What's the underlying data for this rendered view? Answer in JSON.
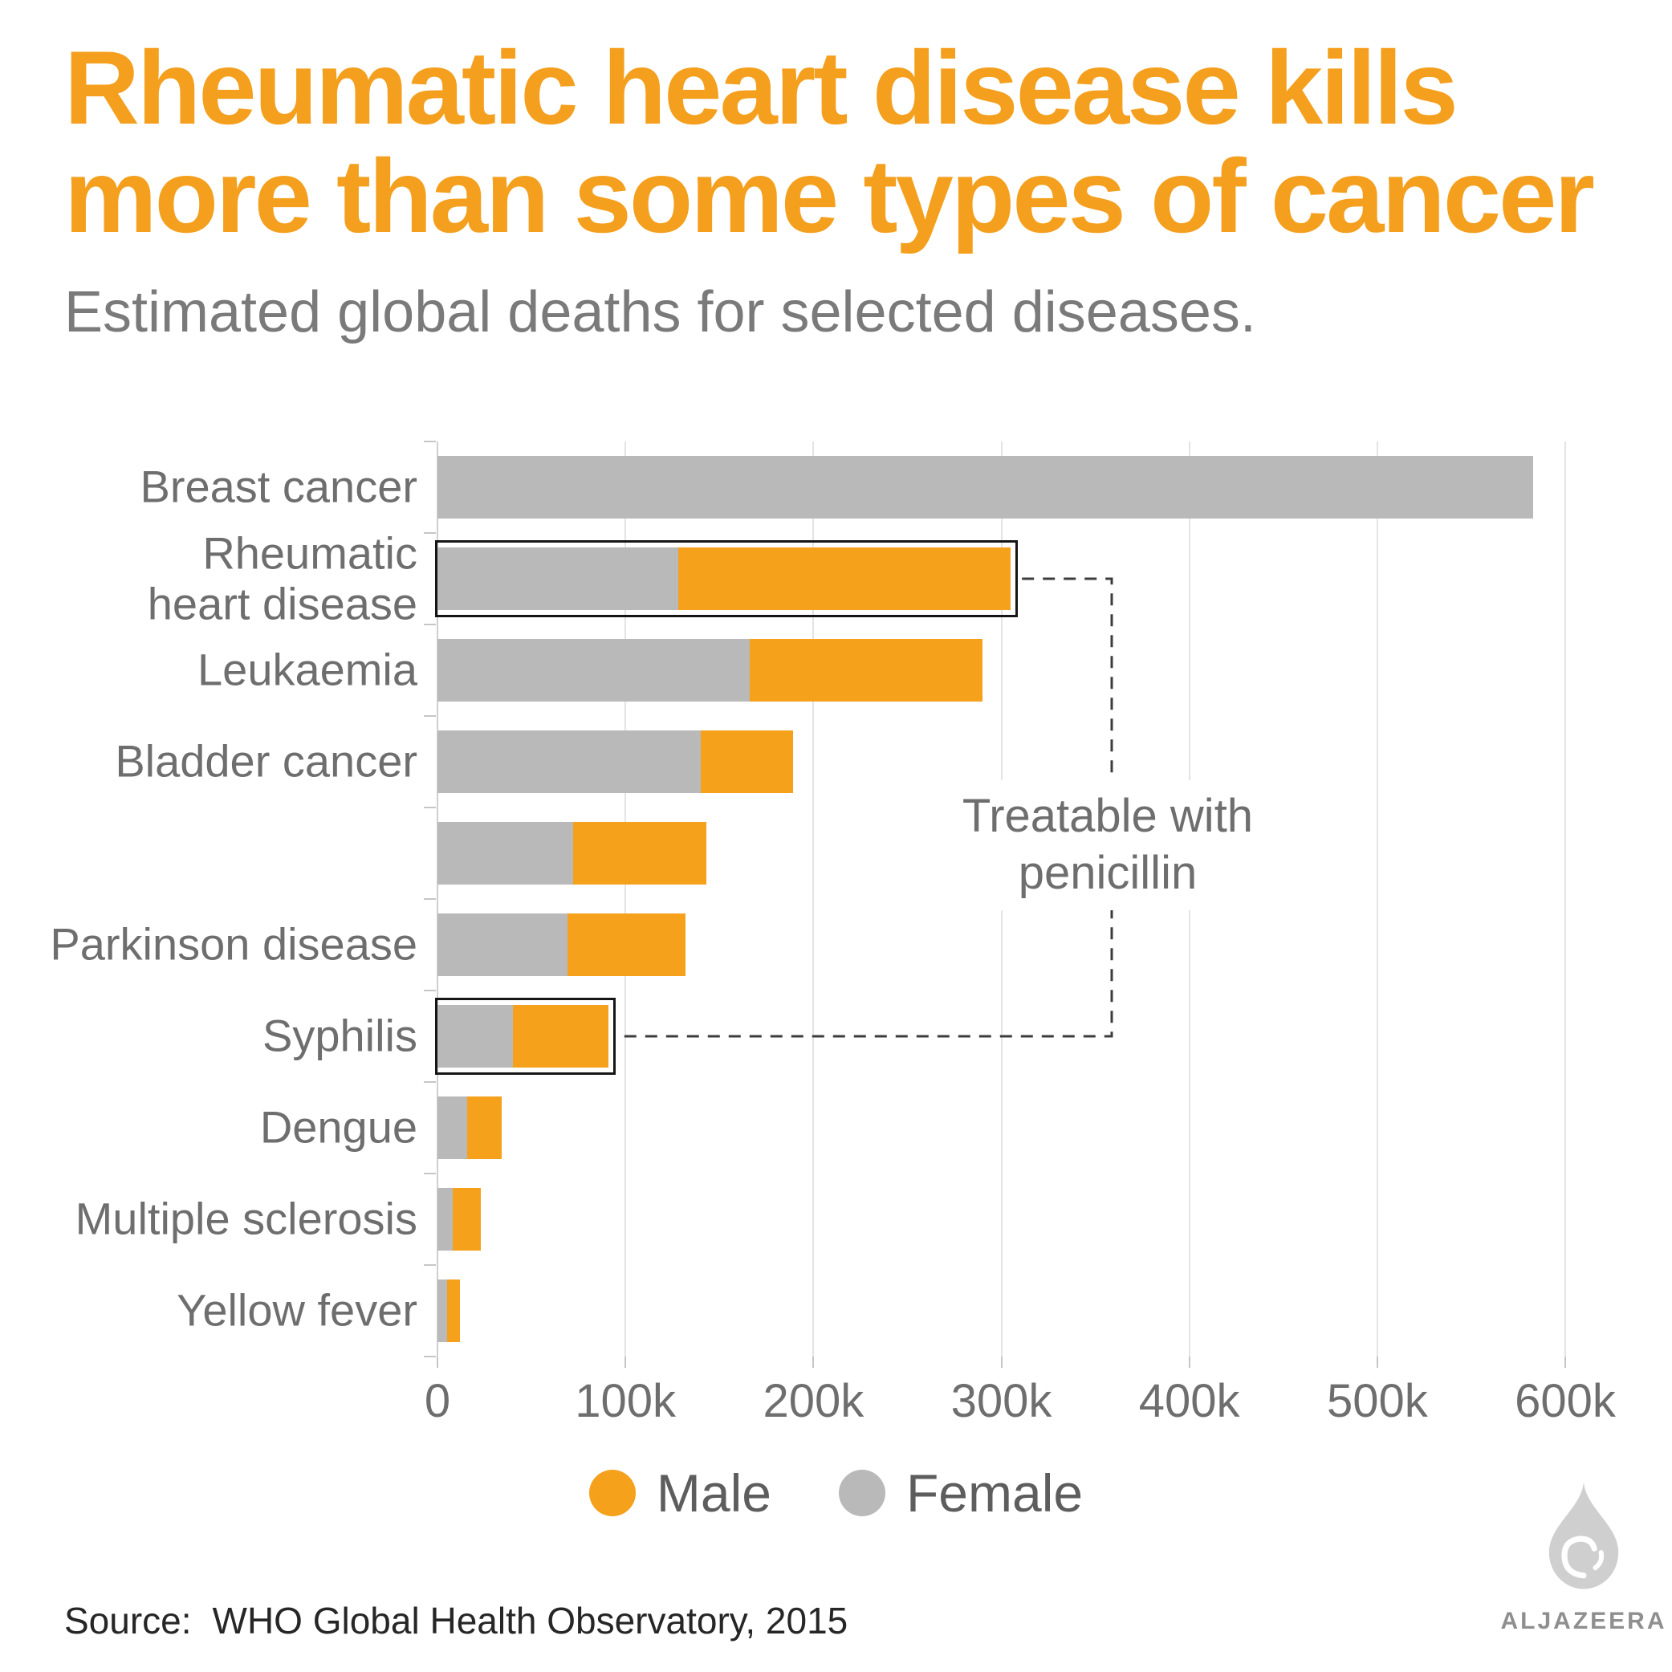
{
  "header": {
    "title_line1": "Rheumatic heart disease kills",
    "title_line2": "more than some types of cancer",
    "subtitle": "Estimated global deaths for selected diseases."
  },
  "chart_data": {
    "type": "bar",
    "orientation": "horizontal",
    "stacked": true,
    "title": "Rheumatic heart disease kills more than some types of cancer",
    "subtitle": "Estimated global deaths for selected diseases.",
    "categories": [
      "Breast cancer",
      "Rheumatic\nheart disease",
      "Leukaemia",
      "Bladder cancer",
      "",
      "Parkinson disease",
      "Syphilis",
      "Dengue",
      "Multiple sclerosis",
      "Yellow fever"
    ],
    "series": [
      {
        "name": "Female",
        "color": "#b9b9b9",
        "values": [
          583000,
          128000,
          166000,
          140000,
          72000,
          69000,
          40000,
          16000,
          8000,
          5000
        ]
      },
      {
        "name": "Male",
        "color": "#f5a11c",
        "values": [
          0,
          177000,
          124000,
          49000,
          71000,
          63000,
          51000,
          18000,
          15000,
          7000
        ]
      }
    ],
    "highlighted_indices": [
      1,
      6
    ],
    "annotation": {
      "line1": "Treatable with",
      "line2": "penicillin"
    },
    "x_ticks": [
      0,
      100000,
      200000,
      300000,
      400000,
      500000,
      600000
    ],
    "x_tick_labels": [
      "0",
      "100k",
      "200k",
      "300k",
      "400k",
      "500k",
      "600k"
    ],
    "xlim": [
      0,
      620000
    ],
    "grid": true,
    "legend_position": "bottom",
    "legend": [
      {
        "label": "Male",
        "color": "#f5a11c"
      },
      {
        "label": "Female",
        "color": "#b9b9b9"
      }
    ]
  },
  "footer": {
    "source_label": "Source:",
    "source_text": "WHO Global Health Observatory, 2015",
    "logo_text": "ALJAZEERA"
  },
  "colors": {
    "accent_orange": "#f4a01e",
    "bar_gray": "#b9b9b9",
    "text_gray": "#6e6e6e",
    "highlight_outline": "#151515"
  }
}
